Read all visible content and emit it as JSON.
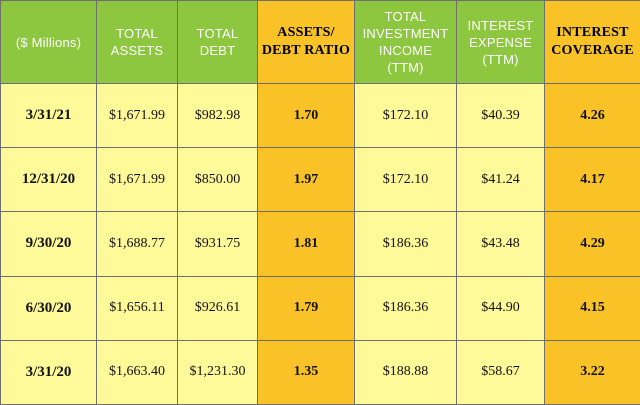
{
  "headers": [
    {
      "lines": [
        "($ Millions)"
      ],
      "highlight": false
    },
    {
      "lines": [
        "TOTAL",
        "ASSETS"
      ],
      "highlight": false
    },
    {
      "lines": [
        "TOTAL",
        "DEBT"
      ],
      "highlight": false
    },
    {
      "lines": [
        "ASSETS/",
        "DEBT RATIO"
      ],
      "highlight": true
    },
    {
      "lines": [
        "TOTAL",
        "INVESTMENT",
        "INCOME",
        "(TTM)"
      ],
      "highlight": false
    },
    {
      "lines": [
        "INTEREST",
        "EXPENSE",
        "(TTM)"
      ],
      "highlight": false
    },
    {
      "lines": [
        "INTEREST",
        "COVERAGE"
      ],
      "highlight": true
    }
  ],
  "rows": [
    [
      "3/31/21",
      "$1,671.99",
      "$982.98",
      "1.70",
      "$172.10",
      "$40.39",
      "4.26"
    ],
    [
      "12/31/20",
      "$1,671.99",
      "$850.00",
      "1.97",
      "$172.10",
      "$41.24",
      "4.17"
    ],
    [
      "9/30/20",
      "$1,688.77",
      "$931.75",
      "1.81",
      "$186.36",
      "$43.48",
      "4.29"
    ],
    [
      "6/30/20",
      "$1,656.11",
      "$926.61",
      "1.79",
      "$186.36",
      "$44.90",
      "4.15"
    ],
    [
      "3/31/20",
      "$1,663.40",
      "$1,231.30",
      "1.35",
      "$188.88",
      "$58.67",
      "3.22"
    ]
  ],
  "colors": {
    "header_green": "#8dc63f",
    "highlight_orange": "#f9c227",
    "cell_yellow": "#fffa99"
  }
}
